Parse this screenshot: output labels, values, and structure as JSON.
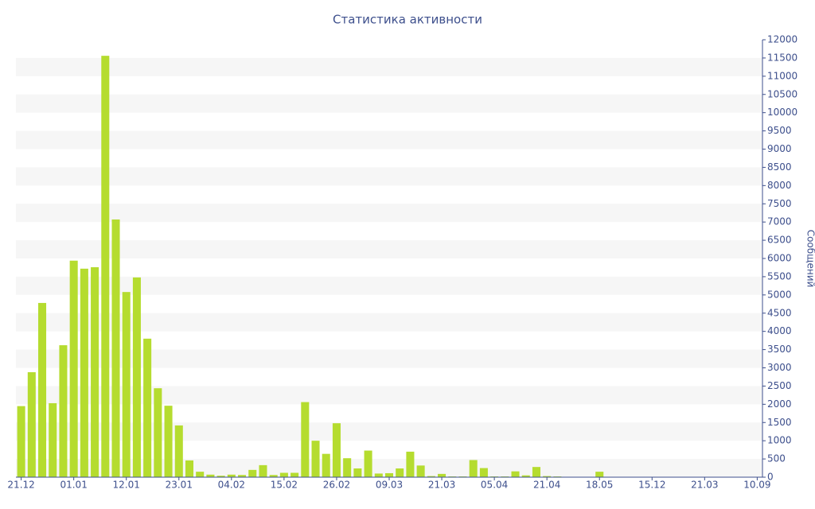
{
  "chart_data": {
    "type": "bar",
    "title": "Статистика активности",
    "y_label": "Сообщений",
    "categories": [
      "21.12",
      null,
      null,
      null,
      null,
      "01.01",
      null,
      null,
      null,
      null,
      "12.01",
      null,
      null,
      null,
      null,
      "23.01",
      null,
      null,
      null,
      null,
      "04.02",
      null,
      null,
      null,
      null,
      "15.02",
      null,
      null,
      null,
      null,
      "26.02",
      null,
      null,
      null,
      null,
      "09.03",
      null,
      null,
      null,
      null,
      "21.03",
      null,
      null,
      null,
      null,
      "05.04",
      null,
      null,
      null,
      null,
      "21.04",
      null,
      null,
      null,
      null,
      "18.05",
      null,
      null,
      null,
      null,
      "15.12",
      null,
      null,
      null,
      null,
      "21.03",
      null,
      null,
      null,
      null,
      "10.09"
    ],
    "values": [
      1950,
      2880,
      4780,
      2030,
      3620,
      5940,
      5720,
      5760,
      11560,
      7070,
      5080,
      5480,
      3800,
      2440,
      1960,
      1420,
      460,
      150,
      70,
      40,
      70,
      60,
      200,
      330,
      60,
      120,
      120,
      2060,
      1000,
      640,
      1480,
      520,
      240,
      730,
      100,
      110,
      240,
      700,
      320,
      30,
      90,
      20,
      20,
      470,
      250,
      20,
      20,
      160,
      50,
      280,
      30,
      20,
      10,
      10,
      10,
      150,
      10,
      10,
      10,
      10,
      10,
      10,
      10,
      10,
      10,
      10,
      10,
      10,
      10,
      10,
      10
    ],
    "color": "#b5dc2f",
    "ylim": [
      0,
      12000
    ],
    "yticks": [
      0,
      500,
      1000,
      1500,
      2000,
      2500,
      3000,
      3500,
      4000,
      4500,
      5000,
      5500,
      6000,
      6500,
      7000,
      7500,
      8000,
      8500,
      9000,
      9500,
      10000,
      10500,
      11000,
      11500,
      12000
    ],
    "y_axis_side": "right",
    "grid": "bands"
  }
}
